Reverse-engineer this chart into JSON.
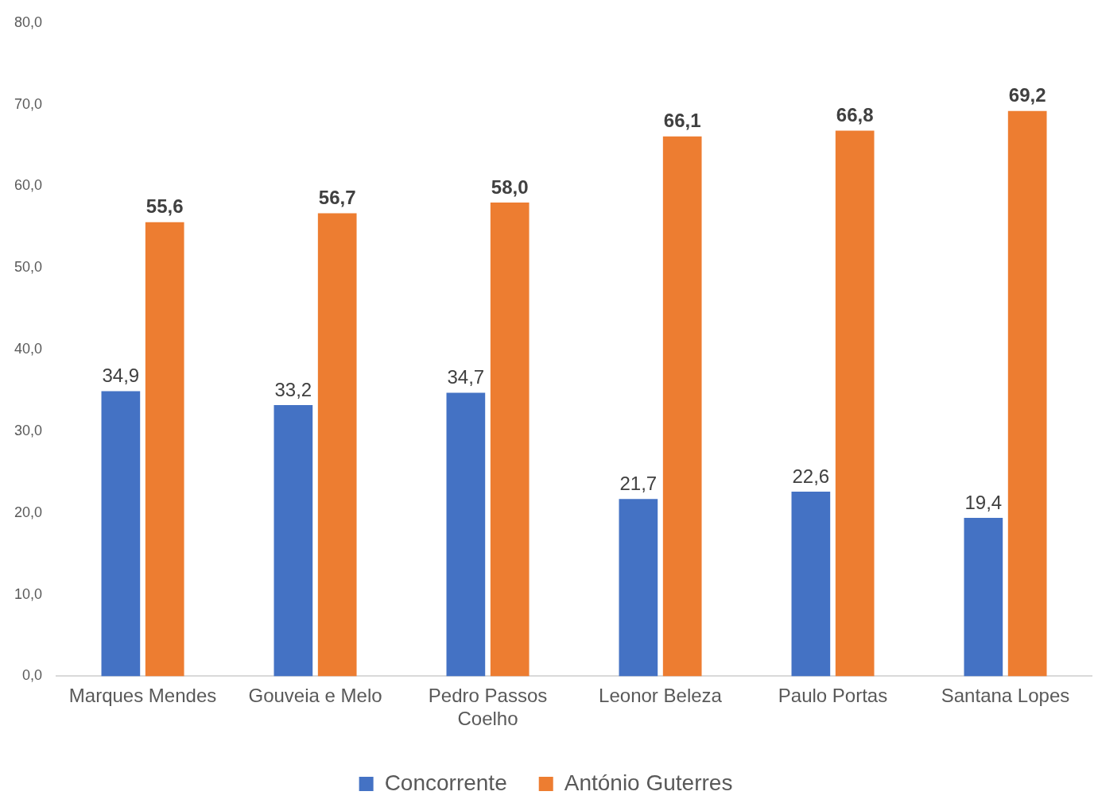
{
  "chart_data": {
    "type": "bar",
    "categories": [
      "Marques Mendes",
      "Gouveia e Melo",
      "Pedro Passos Coelho",
      "Leonor Beleza",
      "Paulo Portas",
      "Santana Lopes"
    ],
    "series": [
      {
        "name": "Concorrente",
        "color": "#4472c4",
        "values": [
          34.9,
          33.2,
          34.7,
          21.7,
          22.6,
          19.4
        ],
        "value_labels": [
          "34,9",
          "33,2",
          "34,7",
          "21,7",
          "22,6",
          "19,4"
        ]
      },
      {
        "name": "António Guterres",
        "color": "#ed7d31",
        "values": [
          55.6,
          56.7,
          58.0,
          66.1,
          66.8,
          69.2
        ],
        "value_labels": [
          "55,6",
          "56,7",
          "58,0",
          "66,1",
          "66,8",
          "69,2"
        ]
      }
    ],
    "ylim": [
      0,
      80
    ],
    "yticks": [
      {
        "value": 0,
        "label": "0,0"
      },
      {
        "value": 10,
        "label": "10,0"
      },
      {
        "value": 20,
        "label": "20,0"
      },
      {
        "value": 30,
        "label": "30,0"
      },
      {
        "value": 40,
        "label": "40,0"
      },
      {
        "value": 50,
        "label": "50,0"
      },
      {
        "value": 60,
        "label": "60,0"
      },
      {
        "value": 70,
        "label": "70,0"
      },
      {
        "value": 80,
        "label": "80,0"
      }
    ],
    "grid": false,
    "legend": "bottom"
  }
}
